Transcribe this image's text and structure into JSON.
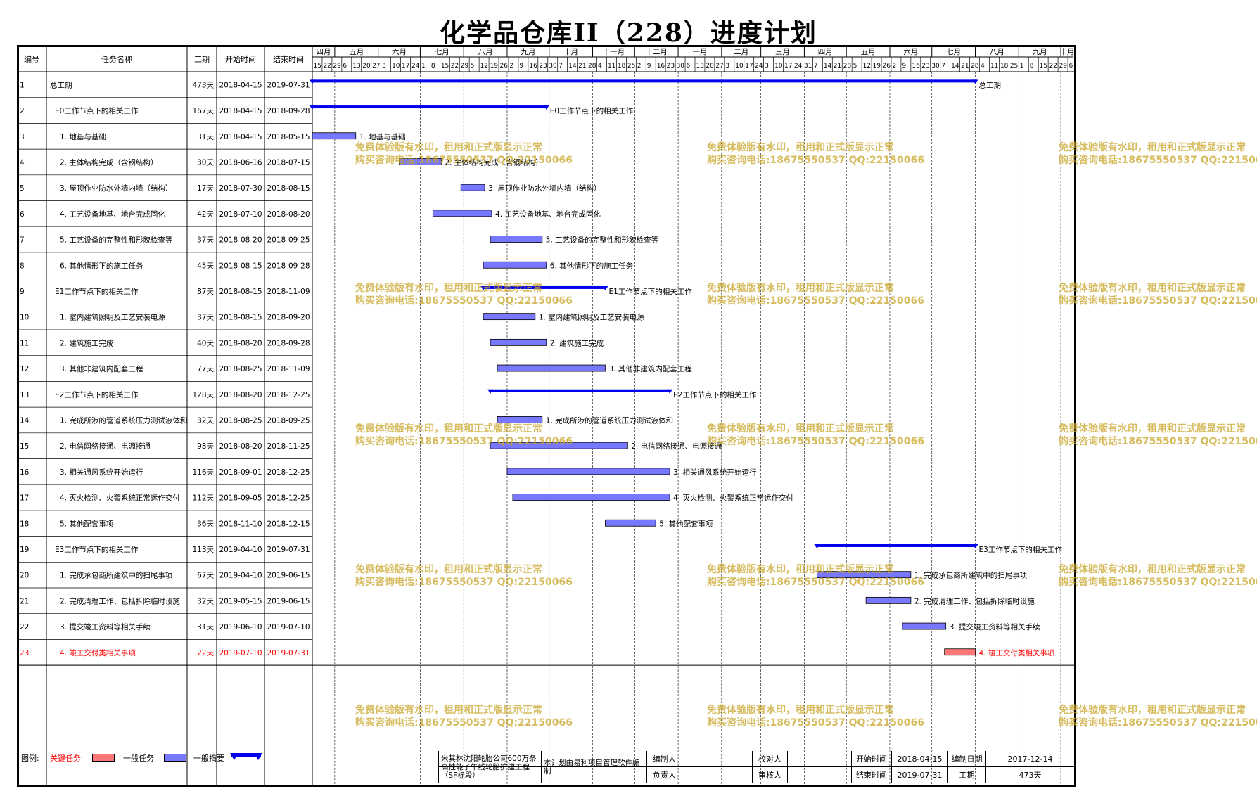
{
  "title": "化学品仓库II（228）进度计划",
  "columns": {
    "id": "编号",
    "name": "任务名称",
    "dur": "工期",
    "start": "开始时间",
    "end": "结束时间"
  },
  "chart_data": {
    "type": "gantt",
    "time_axis": {
      "start": "2018-04-15",
      "end": "2019-10-10",
      "months": [
        {
          "label": "四月",
          "start": "2018-04-15"
        },
        {
          "label": "五月",
          "start": "2018-05-01"
        },
        {
          "label": "六月",
          "start": "2018-06-01"
        },
        {
          "label": "七月",
          "start": "2018-07-01"
        },
        {
          "label": "八月",
          "start": "2018-08-01"
        },
        {
          "label": "九月",
          "start": "2018-09-01"
        },
        {
          "label": "十月",
          "start": "2018-10-01"
        },
        {
          "label": "十一月",
          "start": "2018-11-01"
        },
        {
          "label": "十二月",
          "start": "2018-12-01"
        },
        {
          "label": "一月",
          "start": "2019-01-01"
        },
        {
          "label": "二月",
          "start": "2019-02-01"
        },
        {
          "label": "三月",
          "start": "2019-03-01"
        },
        {
          "label": "四月",
          "start": "2019-04-01"
        },
        {
          "label": "五月",
          "start": "2019-05-01"
        },
        {
          "label": "六月",
          "start": "2019-06-01"
        },
        {
          "label": "七月",
          "start": "2019-07-01"
        },
        {
          "label": "八月",
          "start": "2019-08-01"
        },
        {
          "label": "九月",
          "start": "2019-09-01"
        },
        {
          "label": "十月",
          "start": "2019-10-01"
        }
      ],
      "week_ticks": [
        "15",
        "22",
        "29",
        "6",
        "13",
        "20",
        "27",
        "3",
        "10",
        "17",
        "24",
        "1",
        "8",
        "15",
        "22",
        "29",
        "5",
        "12",
        "19",
        "26",
        "2",
        "9",
        "16",
        "23",
        "30",
        "7",
        "14",
        "21",
        "28",
        "4",
        "11",
        "18",
        "25",
        "2",
        "9",
        "16",
        "23",
        "30",
        "6",
        "13",
        "20",
        "27",
        "3",
        "10",
        "17",
        "24",
        "3",
        "10",
        "17",
        "24",
        "31",
        "7",
        "14",
        "21",
        "28",
        "5",
        "12",
        "19",
        "26",
        "2",
        "9",
        "16",
        "23",
        "30",
        "7",
        "14",
        "21",
        "28",
        "4",
        "11",
        "18",
        "25",
        "1",
        "8",
        "15",
        "22",
        "29",
        "6"
      ]
    },
    "tasks": [
      {
        "id": "1",
        "name": "总工期",
        "indent": 0,
        "dur": "473天",
        "start": "2018-04-15",
        "end": "2019-07-31",
        "kind": "summary",
        "label": "总工期"
      },
      {
        "id": "2",
        "name": "E0工作节点下的相关工作",
        "indent": 1,
        "dur": "167天",
        "start": "2018-04-15",
        "end": "2018-09-28",
        "kind": "summary",
        "label": "E0工作节点下的相关工作"
      },
      {
        "id": "3",
        "name": "1. 地基与基础",
        "indent": 2,
        "dur": "31天",
        "start": "2018-04-15",
        "end": "2018-05-15",
        "kind": "task",
        "label": "1. 地基与基础"
      },
      {
        "id": "4",
        "name": "2. 主体结构完成（含钢结构）",
        "indent": 2,
        "dur": "30天",
        "start": "2018-06-16",
        "end": "2018-07-15",
        "kind": "task",
        "label": "2. 主体结构完成（含钢结构）"
      },
      {
        "id": "5",
        "name": "3. 屋顶作业防水外墙内墙（结构）",
        "indent": 2,
        "dur": "17天",
        "start": "2018-07-30",
        "end": "2018-08-15",
        "kind": "task",
        "label": "3. 屋顶作业防水外墙内墙（结构）"
      },
      {
        "id": "6",
        "name": "4. 工艺设备地基、地台完成固化",
        "indent": 2,
        "dur": "42天",
        "start": "2018-07-10",
        "end": "2018-08-20",
        "kind": "task",
        "label": "4. 工艺设备地基、地台完成固化"
      },
      {
        "id": "7",
        "name": "5. 工艺设备的完整性和形貌检查等",
        "indent": 2,
        "dur": "37天",
        "start": "2018-08-20",
        "end": "2018-09-25",
        "kind": "task",
        "label": "5. 工艺设备的完整性和形貌检查等"
      },
      {
        "id": "8",
        "name": "6. 其他情形下的施工任务",
        "indent": 2,
        "dur": "45天",
        "start": "2018-08-15",
        "end": "2018-09-28",
        "kind": "task",
        "label": "6. 其他情形下的施工任务"
      },
      {
        "id": "9",
        "name": "E1工作节点下的相关工作",
        "indent": 1,
        "dur": "87天",
        "start": "2018-08-15",
        "end": "2018-11-09",
        "kind": "summary",
        "label": "E1工作节点下的相关工作"
      },
      {
        "id": "10",
        "name": "1. 室内建筑照明及工艺安装电源",
        "indent": 2,
        "dur": "37天",
        "start": "2018-08-15",
        "end": "2018-09-20",
        "kind": "task",
        "label": "1. 室内建筑照明及工艺安装电源"
      },
      {
        "id": "11",
        "name": "2. 建筑施工完成",
        "indent": 2,
        "dur": "40天",
        "start": "2018-08-20",
        "end": "2018-09-28",
        "kind": "task",
        "label": "2. 建筑施工完成"
      },
      {
        "id": "12",
        "name": "3. 其他非建筑内配套工程",
        "indent": 2,
        "dur": "77天",
        "start": "2018-08-25",
        "end": "2018-11-09",
        "kind": "task",
        "label": "3. 其他非建筑内配套工程"
      },
      {
        "id": "13",
        "name": "E2工作节点下的相关工作",
        "indent": 1,
        "dur": "128天",
        "start": "2018-08-20",
        "end": "2018-12-25",
        "kind": "summary",
        "label": "E2工作节点下的相关工作"
      },
      {
        "id": "14",
        "name": "1. 完成所涉的管道系统压力测试液体和",
        "indent": 2,
        "dur": "32天",
        "start": "2018-08-25",
        "end": "2018-09-25",
        "kind": "task",
        "label": "1. 完成所涉的管道系统压力测试液体和"
      },
      {
        "id": "15",
        "name": "2. 电信网络接通、电源接通",
        "indent": 2,
        "dur": "98天",
        "start": "2018-08-20",
        "end": "2018-11-25",
        "kind": "task",
        "label": "2. 电信网络接通、电源接通"
      },
      {
        "id": "16",
        "name": "3. 相关通风系统开始运行",
        "indent": 2,
        "dur": "116天",
        "start": "2018-09-01",
        "end": "2018-12-25",
        "kind": "task",
        "label": "3. 相关通风系统开始运行"
      },
      {
        "id": "17",
        "name": "4. 灭火检测、火警系统正常运作交付",
        "indent": 2,
        "dur": "112天",
        "start": "2018-09-05",
        "end": "2018-12-25",
        "kind": "task",
        "label": "4. 灭火检测、火警系统正常运作交付"
      },
      {
        "id": "18",
        "name": "5. 其他配套事项",
        "indent": 2,
        "dur": "36天",
        "start": "2018-11-10",
        "end": "2018-12-15",
        "kind": "task",
        "label": "5. 其他配套事项"
      },
      {
        "id": "19",
        "name": "E3工作节点下的相关工作",
        "indent": 1,
        "dur": "113天",
        "start": "2019-04-10",
        "end": "2019-07-31",
        "kind": "summary",
        "label": "E3工作节点下的相关工作"
      },
      {
        "id": "20",
        "name": "1. 完成承包商所建筑中的扫尾事项",
        "indent": 2,
        "dur": "67天",
        "start": "2019-04-10",
        "end": "2019-06-15",
        "kind": "task",
        "label": "1. 完成承包商所建筑中的扫尾事项"
      },
      {
        "id": "21",
        "name": "2. 完成清理工作、包括拆除临时设施",
        "indent": 2,
        "dur": "32天",
        "start": "2019-05-15",
        "end": "2019-06-15",
        "kind": "task",
        "label": "2. 完成清理工作、包括拆除临时设施"
      },
      {
        "id": "22",
        "name": "3. 提交竣工资料等相关手续",
        "indent": 2,
        "dur": "31天",
        "start": "2019-06-10",
        "end": "2019-07-10",
        "kind": "task",
        "label": "3. 提交竣工资料等相关手续"
      },
      {
        "id": "23",
        "name": "4. 竣工交付类相关事项",
        "indent": 2,
        "dur": "22天",
        "start": "2019-07-10",
        "end": "2019-07-31",
        "kind": "critical",
        "label": "4. 竣工交付类相关事项"
      }
    ],
    "colors": {
      "summary": "#0000ee",
      "task": "#7777ff",
      "critical": "#ff7777",
      "critical_text": "#ff0000",
      "grid": "#000000"
    }
  },
  "watermark": {
    "line1": "免费体验版有水印，租用和正式版显示正常",
    "line2": "购买咨询电话:18675550537 QQ:22150066"
  },
  "legend": {
    "label": "图例:",
    "critical": "关键任务",
    "task": "一般任务",
    "summary": "一般摘要"
  },
  "footer": {
    "company": "米其林沈阳轮胎公司600万条高性能子午线轮胎扩建工程（SF标段）",
    "software": "本计划由易利项目管理软件编制",
    "prepared_by_label": "编制人",
    "prepared_by": "",
    "checked_by_label": "校对人",
    "checked_by": "",
    "start_label": "开始时间",
    "start": "2018-04-15",
    "date_label": "编制日期",
    "date": "2017-12-14",
    "responsible_label": "负责人",
    "responsible": "",
    "reviewed_by_label": "审核人",
    "reviewed_by": "",
    "end_label": "结束时间",
    "end": "2019-07-31",
    "dur_label": "工期",
    "dur": "473天"
  }
}
